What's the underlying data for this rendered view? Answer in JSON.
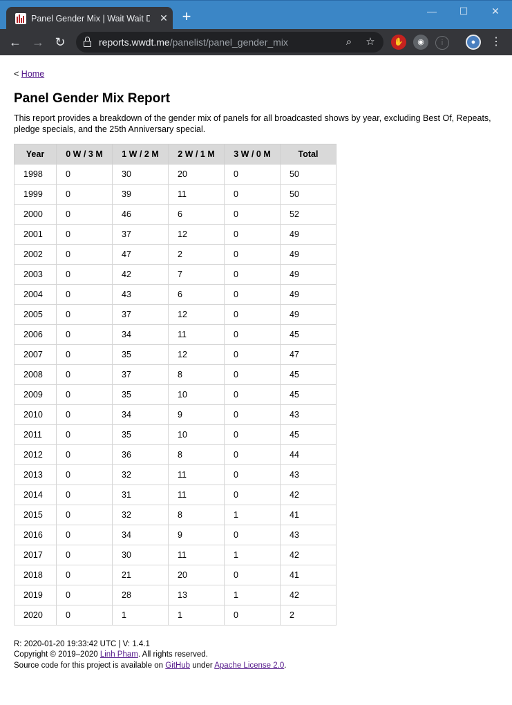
{
  "browser": {
    "tab_title": "Panel Gender Mix | Wait Wait Don't Tell Me Stats",
    "url_domain": "reports.wwdt.me",
    "url_path": "/panelist/panel_gender_mix"
  },
  "breadcrumb": {
    "prefix": "<",
    "link": "Home"
  },
  "page": {
    "title": "Panel Gender Mix Report",
    "description": "This report provides a breakdown of the gender mix of panels for all broadcasted shows by year, excluding Best Of, Repeats, pledge specials, and the 25th Anniversary special."
  },
  "table": {
    "headers": [
      "Year",
      "0 W / 3 M",
      "1 W / 2 M",
      "2 W / 1 M",
      "3 W / 0 M",
      "Total"
    ],
    "rows": [
      [
        "1998",
        "0",
        "30",
        "20",
        "0",
        "50"
      ],
      [
        "1999",
        "0",
        "39",
        "11",
        "0",
        "50"
      ],
      [
        "2000",
        "0",
        "46",
        "6",
        "0",
        "52"
      ],
      [
        "2001",
        "0",
        "37",
        "12",
        "0",
        "49"
      ],
      [
        "2002",
        "0",
        "47",
        "2",
        "0",
        "49"
      ],
      [
        "2003",
        "0",
        "42",
        "7",
        "0",
        "49"
      ],
      [
        "2004",
        "0",
        "43",
        "6",
        "0",
        "49"
      ],
      [
        "2005",
        "0",
        "37",
        "12",
        "0",
        "49"
      ],
      [
        "2006",
        "0",
        "34",
        "11",
        "0",
        "45"
      ],
      [
        "2007",
        "0",
        "35",
        "12",
        "0",
        "47"
      ],
      [
        "2008",
        "0",
        "37",
        "8",
        "0",
        "45"
      ],
      [
        "2009",
        "0",
        "35",
        "10",
        "0",
        "45"
      ],
      [
        "2010",
        "0",
        "34",
        "9",
        "0",
        "43"
      ],
      [
        "2011",
        "0",
        "35",
        "10",
        "0",
        "45"
      ],
      [
        "2012",
        "0",
        "36",
        "8",
        "0",
        "44"
      ],
      [
        "2013",
        "0",
        "32",
        "11",
        "0",
        "43"
      ],
      [
        "2014",
        "0",
        "31",
        "11",
        "0",
        "42"
      ],
      [
        "2015",
        "0",
        "32",
        "8",
        "1",
        "41"
      ],
      [
        "2016",
        "0",
        "34",
        "9",
        "0",
        "43"
      ],
      [
        "2017",
        "0",
        "30",
        "11",
        "1",
        "42"
      ],
      [
        "2018",
        "0",
        "21",
        "20",
        "0",
        "41"
      ],
      [
        "2019",
        "0",
        "28",
        "13",
        "1",
        "42"
      ],
      [
        "2020",
        "0",
        "1",
        "1",
        "0",
        "2"
      ]
    ]
  },
  "footer": {
    "revision": "R: 2020-01-20 19:33:42 UTC | V: 1.4.1",
    "copyright_prefix": "Copyright © 2019–2020 ",
    "author_link": "Linh Pham",
    "copyright_suffix": ". All rights reserved.",
    "source_prefix": "Source code for this project is available on ",
    "github_link": "GitHub",
    "source_middle": " under ",
    "license_link": "Apache License 2.0",
    "source_suffix": "."
  }
}
